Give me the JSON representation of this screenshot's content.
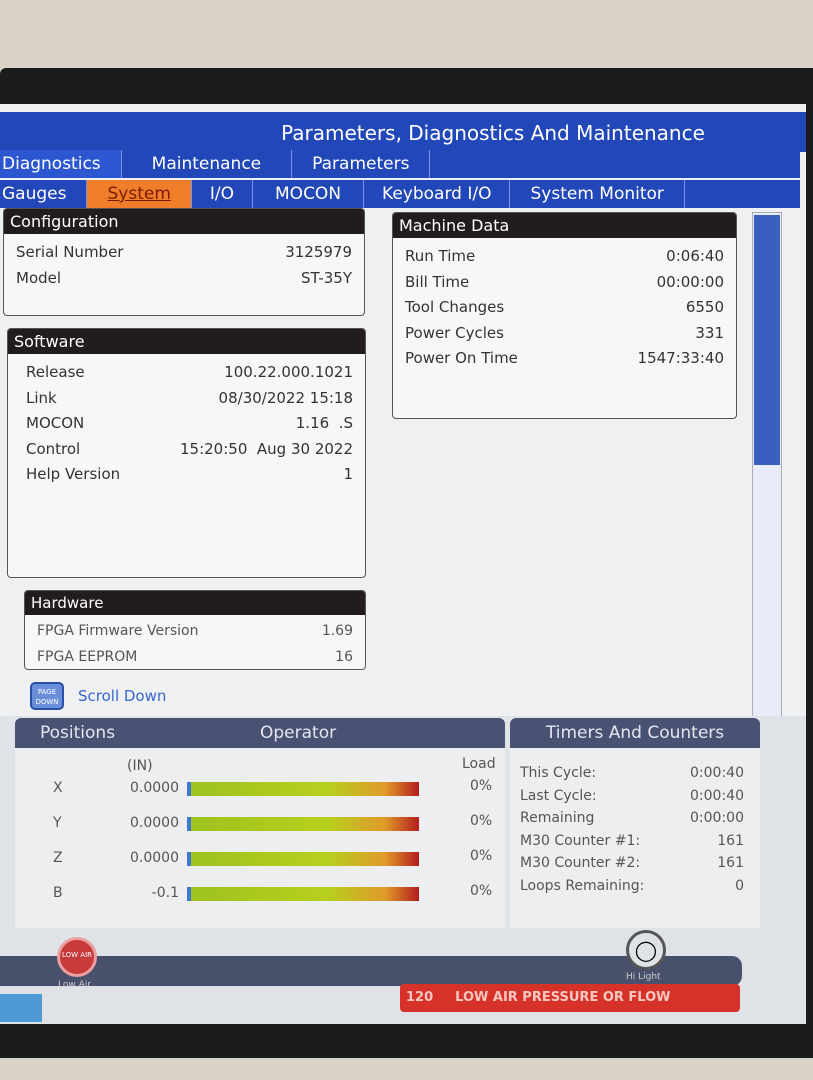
{
  "window": {
    "title": "Parameters, Diagnostics And Maintenance"
  },
  "tabs_primary": [
    {
      "label": "Diagnostics",
      "active": true
    },
    {
      "label": "Maintenance"
    },
    {
      "label": "Parameters"
    }
  ],
  "tabs_secondary": [
    {
      "label": "Gauges"
    },
    {
      "label": "System",
      "active": true
    },
    {
      "label": "I/O"
    },
    {
      "label": "MOCON"
    },
    {
      "label": "Keyboard I/O"
    },
    {
      "label": "System Monitor"
    }
  ],
  "configuration": {
    "title": "Configuration",
    "rows": [
      {
        "label": "Serial Number",
        "value": "3125979"
      },
      {
        "label": "Model",
        "value": "ST-35Y"
      }
    ]
  },
  "software": {
    "title": "Software",
    "rows": [
      {
        "label": "Release",
        "value": "100.22.000.1021"
      },
      {
        "label": "Link",
        "value": "08/30/2022 15:18"
      },
      {
        "label": "MOCON",
        "value": "1.16  .S"
      },
      {
        "label": "Control",
        "value": "15:20:50  Aug 30 2022"
      },
      {
        "label": "Help Version",
        "value": "1"
      }
    ]
  },
  "hardware": {
    "title": "Hardware",
    "rows": [
      {
        "label": "FPGA Firmware Version",
        "value": "1.69"
      },
      {
        "label": "FPGA EEPROM",
        "value": "16"
      }
    ]
  },
  "machine_data": {
    "title": "Machine Data",
    "rows": [
      {
        "label": "Run Time",
        "value": "0:06:40"
      },
      {
        "label": "Bill Time",
        "value": "00:00:00"
      },
      {
        "label": "Tool Changes",
        "value": "6550"
      },
      {
        "label": "Power Cycles",
        "value": "331"
      },
      {
        "label": "Power On Time",
        "value": "1547:33:40"
      }
    ]
  },
  "scroll": {
    "icon_label": "PAGE DOWN",
    "label": "Scroll Down"
  },
  "positions": {
    "title": "Positions",
    "mode": "Operator",
    "unit": "(IN)",
    "load_header": "Load",
    "axes": [
      {
        "axis": "X",
        "value": "0.0000",
        "load": "0%"
      },
      {
        "axis": "Y",
        "value": "0.0000",
        "load": "0%"
      },
      {
        "axis": "Z",
        "value": "0.0000",
        "load": "0%"
      },
      {
        "axis": "B",
        "value": "-0.1",
        "load": "0%"
      }
    ]
  },
  "timers": {
    "title": "Timers And Counters",
    "rows": [
      {
        "label": "This Cycle:",
        "value": "0:00:40"
      },
      {
        "label": "Last Cycle:",
        "value": "0:00:40"
      },
      {
        "label": "Remaining",
        "value": "0:00:00"
      },
      {
        "label": "M30 Counter #1:",
        "value": "161"
      },
      {
        "label": "M30 Counter #2:",
        "value": "161"
      },
      {
        "label": "Loops Remaining:",
        "value": "0"
      }
    ]
  },
  "status": {
    "low_air_icon_text": "LOW AIR",
    "low_air_label": "Low Air",
    "hi_light_label": "Hi Light"
  },
  "alarm": {
    "code": "120",
    "message": "LOW AIR PRESSURE OR FLOW",
    "color": "#d7322a"
  }
}
